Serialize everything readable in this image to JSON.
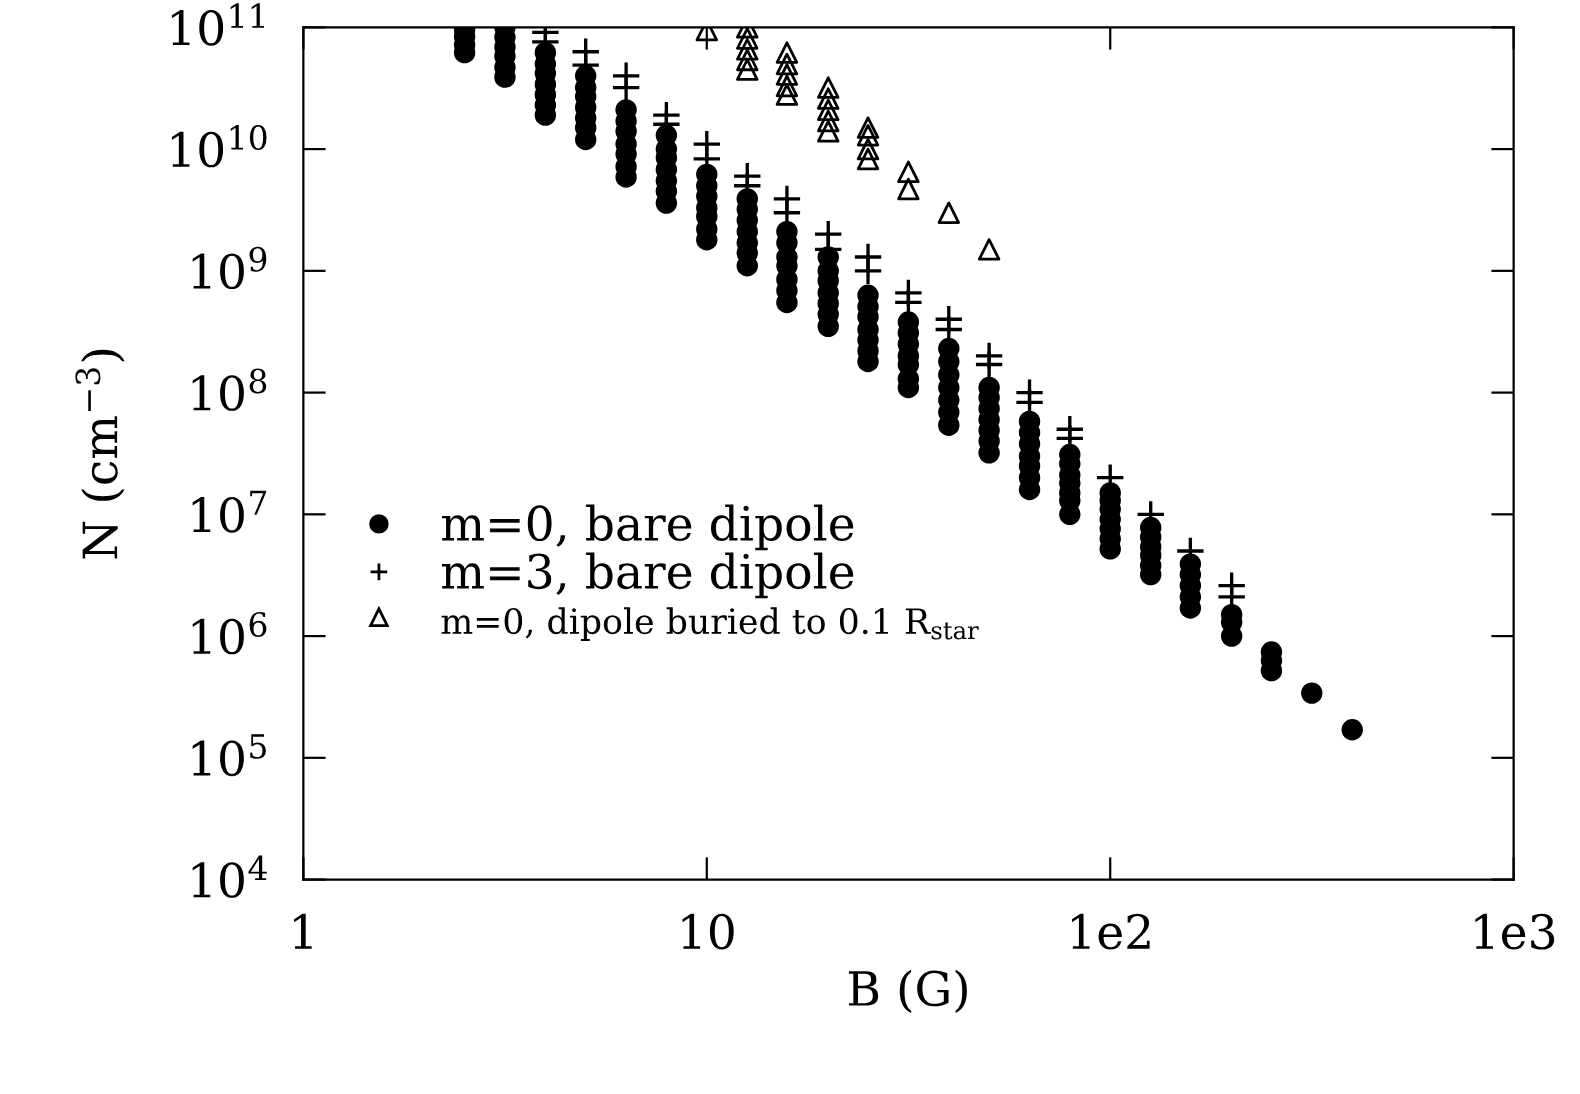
{
  "chart_data": {
    "type": "scatter",
    "xlabel": "B (G)",
    "ylabel": "N (cm$^{−3}$)",
    "log": "xy",
    "xlim": [
      1,
      1000
    ],
    "ylim": [
      10000,
      100000000000
    ],
    "xticks": [
      1,
      10,
      {
        "value": 100,
        "label": "1e2"
      },
      {
        "value": 1000,
        "label": "1e3"
      }
    ],
    "yticks": [
      {
        "value": 10000,
        "label": "10$^{4}$"
      },
      {
        "value": 100000,
        "label": "10$^{5}$"
      },
      {
        "value": 1000000,
        "label": "10$^{6}$"
      },
      {
        "value": 10000000,
        "label": "10$^{7}$"
      },
      {
        "value": 100000000,
        "label": "10$^{8}$"
      },
      {
        "value": 1000000000,
        "label": "10$^{9}$"
      },
      {
        "value": 10000000000,
        "label": "10$^{10}$"
      },
      {
        "value": 100000000000,
        "label": "10$^{11}$"
      }
    ],
    "grid": false,
    "legend": "center left",
    "series": [
      {
        "name": "m=0, bare dipole",
        "color": "#000000",
        "marker": "circle",
        "x": [
          2.51,
          2.51,
          2.51,
          2.51,
          3.16,
          3.16,
          3.16,
          3.16,
          3.16,
          3.16,
          3.98,
          3.98,
          3.98,
          3.98,
          3.98,
          3.98,
          3.98,
          5.01,
          5.01,
          5.01,
          5.01,
          5.01,
          5.01,
          5.01,
          6.31,
          6.31,
          6.31,
          6.31,
          6.31,
          6.31,
          6.31,
          7.94,
          7.94,
          7.94,
          7.94,
          7.94,
          7.94,
          7.94,
          10,
          10,
          10,
          10,
          10,
          10,
          10,
          12.6,
          12.6,
          12.6,
          12.6,
          12.6,
          12.6,
          12.6,
          15.8,
          15.8,
          15.8,
          15.8,
          15.8,
          15.8,
          15.8,
          20,
          20,
          20,
          20,
          20,
          20,
          20,
          25.1,
          25.1,
          25.1,
          25.1,
          25.1,
          25.1,
          25.1,
          31.6,
          31.6,
          31.6,
          31.6,
          31.6,
          31.6,
          31.6,
          39.8,
          39.8,
          39.8,
          39.8,
          39.8,
          39.8,
          39.8,
          50.1,
          50.1,
          50.1,
          50.1,
          50.1,
          50.1,
          50.1,
          63.1,
          63.1,
          63.1,
          63.1,
          63.1,
          63.1,
          63.1,
          79.4,
          79.4,
          79.4,
          79.4,
          79.4,
          79.4,
          79.4,
          100,
          100,
          100,
          100,
          100,
          100,
          100,
          126,
          126,
          126,
          126,
          126,
          126,
          158,
          158,
          158,
          158,
          158,
          200,
          200,
          200,
          251,
          251,
          251,
          316,
          398
        ],
        "values": [
          96000000000.0,
          84000000000.0,
          72000000000.0,
          62000000000.0,
          100000000000.0,
          83000000000.0,
          69000000000.0,
          58000000000.0,
          47000000000.0,
          39000000000.0,
          62000000000.0,
          50000000000.0,
          42000000000.0,
          34000000000.0,
          28000000000.0,
          23000000000.0,
          19000000000.0,
          40000000000.0,
          32000000000.0,
          27000000000.0,
          22000000000.0,
          18000000000.0,
          15000000000.0,
          12000000000.0,
          21000000000.0,
          17000000000.0,
          14000000000.0,
          11000000000.0,
          9100000000.0,
          7200000000.0,
          5900000000.0,
          13000000000.0,
          10000000000.0,
          8500000000.0,
          6800000000.0,
          5500000000.0,
          4500000000.0,
          3600000000.0,
          6200000000.0,
          5000000000.0,
          4100000000.0,
          3300000000.0,
          2800000000.0,
          2200000000.0,
          1800000000.0,
          3900000000.0,
          3200000000.0,
          2600000000.0,
          2100000000.0,
          1700000000.0,
          1400000000.0,
          1100000000.0,
          2100000000.0,
          1700000000.0,
          1300000000.0,
          1100000000.0,
          850000000.0,
          690000000.0,
          550000000.0,
          1300000000.0,
          1000000000.0,
          830000000.0,
          660000000.0,
          540000000.0,
          440000000.0,
          350000000.0,
          630000000.0,
          510000000.0,
          420000000.0,
          330000000.0,
          270000000.0,
          220000000.0,
          180000000.0,
          380000000.0,
          310000000.0,
          250000000.0,
          200000000.0,
          170000000.0,
          130000000.0,
          110000000.0,
          230000000.0,
          180000000.0,
          140000000.0,
          110000000.0,
          87000000.0,
          69000000.0,
          54000000.0,
          110000000.0,
          91000000.0,
          74000000.0,
          60000000.0,
          49000000.0,
          40000000.0,
          32000000.0,
          58000000.0,
          47000000.0,
          38000000.0,
          30000000.0,
          25000000.0,
          20000000.0,
          16000000.0,
          31000000.0,
          26000000.0,
          21000000.0,
          18000000.0,
          15000000.0,
          13000000.0,
          10000000.0,
          15000000.0,
          13000000.0,
          11000000.0,
          9100000.0,
          7600000.0,
          6300000.0,
          5200000.0,
          7800000.0,
          6500000.0,
          5400000.0,
          4600000.0,
          3800000.0,
          3200000.0,
          3900000.0,
          3200000.0,
          2600000.0,
          2100000.0,
          1700000.0,
          1500000.0,
          1300000.0,
          1000000.0,
          740000.0,
          630000.0,
          520000.0,
          340000.0,
          170000.0
        ]
      },
      {
        "name": "m=3, bare dipole",
        "color": "#000000",
        "marker": "cross",
        "x": [
          3.98,
          3.98,
          5.01,
          5.01,
          6.31,
          6.31,
          7.94,
          7.94,
          10,
          10,
          12.6,
          12.6,
          15.8,
          15.8,
          20,
          20,
          25.1,
          25.1,
          31.6,
          31.6,
          39.8,
          39.8,
          50.1,
          50.1,
          63.1,
          63.1,
          79.4,
          79.4,
          100,
          126,
          158,
          200,
          200
        ],
        "values": [
          91000000000.0,
          76000000000.0,
          63000000000.0,
          49000000000.0,
          40000000000.0,
          32000000000.0,
          19000000000.0,
          16000000000.0,
          11000000000.0,
          8300000000.0,
          6000000000.0,
          5000000000.0,
          3900000000.0,
          3000000000.0,
          2000000000.0,
          1500000000.0,
          1300000000.0,
          1000000000.0,
          660000000.0,
          550000000.0,
          400000000.0,
          330000000.0,
          200000000.0,
          170000000.0,
          100000000.0,
          83000000.0,
          50000000.0,
          42000000.0,
          20000000.0,
          10000000.0,
          5000000.0,
          2600000.0,
          2100000.0
        ]
      },
      {
        "name": "m=0, dipole buried to 0.1 R$_{star}$",
        "color": "#000000",
        "marker": "triangle",
        "x": [
          10,
          12.6,
          12.6,
          12.6,
          12.6,
          12.6,
          15.8,
          15.8,
          15.8,
          15.8,
          15.8,
          20,
          20,
          20,
          20,
          20,
          25.1,
          25.1,
          25.1,
          25.1,
          31.6,
          31.6,
          39.8,
          50.1
        ],
        "values": [
          95000000000.0,
          100000000000.0,
          81000000000.0,
          66000000000.0,
          54000000000.0,
          45000000000.0,
          62000000000.0,
          50000000000.0,
          41000000000.0,
          33000000000.0,
          28000000000.0,
          32000000000.0,
          26000000000.0,
          21000000000.0,
          17000000000.0,
          14000000000.0,
          15000000000.0,
          13000000000.0,
          10000000000.0,
          8300000000.0,
          6500000000.0,
          4700000000.0,
          3000000000.0,
          1500000000.0
        ]
      }
    ]
  }
}
